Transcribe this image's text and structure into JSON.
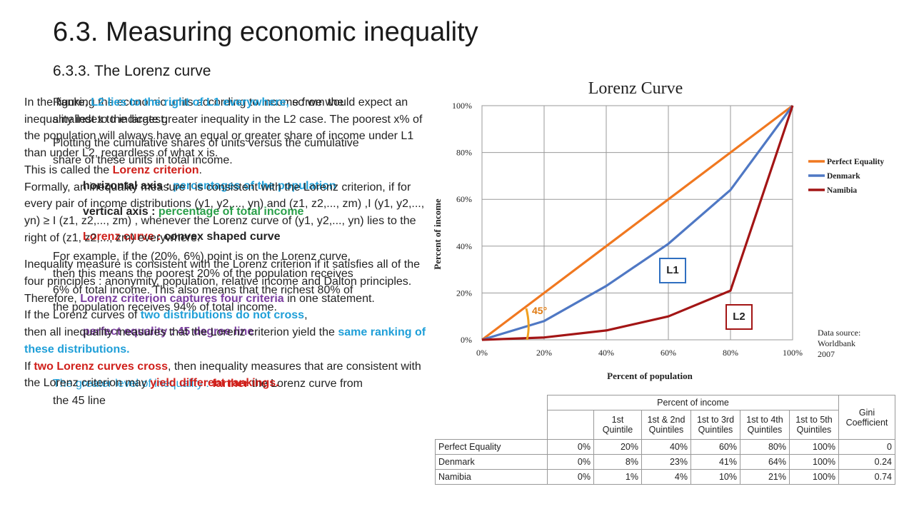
{
  "slide": {
    "title": "6.3. Measuring economic inequality",
    "subtitle": "6.3.3. The Lorenz curve"
  },
  "text_back": {
    "bullets": [
      {
        "pre": "Ranking the economic units according to income from the smallest to the largest.",
        "emph": "",
        "post": ""
      },
      {
        "pre": "Plotting the cumulative shares of units versus the cumulative share of these units in total income.",
        "emph": "",
        "post": ""
      },
      {
        "pre": "horizontal axis : ",
        "emph": "percentages of the population",
        "post": ""
      },
      {
        "pre": "vertical axis : ",
        "emph": "percentage of total income",
        "post": ""
      },
      {
        "pre": "Lorenz curve : ",
        "emph": "convex shaped curve",
        "post": ""
      },
      {
        "pre": "For example, if the (20%, 6%) point is on the Lorenz curve, then this means the poorest 20% of the population receives 6% of total income. This also means that the richest 80% of the population receives 94% of total income.",
        "emph": "",
        "post": ""
      },
      {
        "pre": "perfect equality : 45 degree line",
        "emph": "",
        "post": ""
      },
      {
        "pre": "The greater level of inequality : ",
        "emph": "farther",
        "post": " the Lorenz curve from the 45 line"
      }
    ]
  },
  "text_front": {
    "p1": [
      "In the figure, ",
      "L2 lies to the right of L1 everywhere,",
      " so we would expect an inequality index to indicate greater inequality in the L2 case. The poorest x% of the population will always have an equal or greater share of income under L1 than under L2, regardless of what x is."
    ],
    "p2": [
      "This is called the ",
      "Lorenz criterion",
      "."
    ],
    "p3": "Formally, an inequality measure I is consistent with the Lorenz criterion, if for every pair of income distributions (y1, y2,..., yn) and (z1, z2,..., zm) ,I (y1, y2,..., yn) ≥ I (z1, z2,..., zm) , whenever the Lorenz curve of (y1, y2,..., yn) lies to the right of (z1, z2,..., zm) everywhere.",
    "p4": "Inequality measure is consistent with the Lorenz criterion if it satisfies all of the four principles : anonymity, population, relative income and Dalton principles.",
    "p5": [
      "Therefore, ",
      "Lorenz criterion captures four criteria",
      " in one statement."
    ],
    "p6": [
      "If the Lorenz curves of ",
      "two distributions do not cross",
      ","
    ],
    "p7": [
      "then all inequality measures that the Lorenz criterion yield the ",
      "same ranking of these distributions."
    ],
    "p8": [
      "If ",
      "two Lorenz curves cross",
      ", then inequality measures that are consistent with the Lorenz criterion may ",
      "yield different rankings."
    ]
  },
  "chart_data": {
    "type": "line",
    "title": "Lorenz Curve",
    "xlabel": "Percent of population",
    "ylabel": "Percent of income",
    "x": [
      0,
      20,
      40,
      60,
      80,
      100
    ],
    "x_tick_labels": [
      "0%",
      "20%",
      "40%",
      "60%",
      "80%",
      "100%"
    ],
    "y_tick_labels": [
      "0%",
      "20%",
      "40%",
      "60%",
      "80%",
      "100%"
    ],
    "xlim": [
      0,
      100
    ],
    "ylim": [
      0,
      100
    ],
    "grid": true,
    "legend_position": "right",
    "series": [
      {
        "name": "Perfect Equality",
        "color": "#f07820",
        "values": [
          0,
          20,
          40,
          60,
          80,
          100
        ]
      },
      {
        "name": "Denmark",
        "color": "#4f78c4",
        "values": [
          0,
          8,
          23,
          41,
          64,
          100
        ]
      },
      {
        "name": "Namibia",
        "color": "#a31515",
        "values": [
          0,
          1,
          4,
          10,
          21,
          100
        ]
      }
    ],
    "annotations": {
      "angle_label": "45°",
      "l1_label": "L1",
      "l2_label": "L2",
      "source_line1": "Data source:",
      "source_line2": "Worldbank",
      "source_line3": "2007"
    },
    "table": {
      "group_header": "Percent of income",
      "col_headers": [
        {
          "a": "1st",
          "b": "Quintile"
        },
        {
          "a": "1st & 2nd",
          "b": "Quintiles"
        },
        {
          "a": "1st to 3rd",
          "b": "Quintiles"
        },
        {
          "a": "1st to 4th",
          "b": "Quintiles"
        },
        {
          "a": "1st to 5th",
          "b": "Quintiles"
        }
      ],
      "gini_header_a": "Gini",
      "gini_header_b": "Coefficient",
      "rows": [
        {
          "label": "Perfect Equality",
          "cells": [
            "0%",
            "20%",
            "40%",
            "60%",
            "80%",
            "100%",
            "0"
          ]
        },
        {
          "label": "Denmark",
          "cells": [
            "0%",
            "8%",
            "23%",
            "41%",
            "64%",
            "100%",
            "0.24"
          ]
        },
        {
          "label": "Namibia",
          "cells": [
            "0%",
            "1%",
            "4%",
            "10%",
            "21%",
            "100%",
            "0.74"
          ]
        }
      ]
    }
  }
}
